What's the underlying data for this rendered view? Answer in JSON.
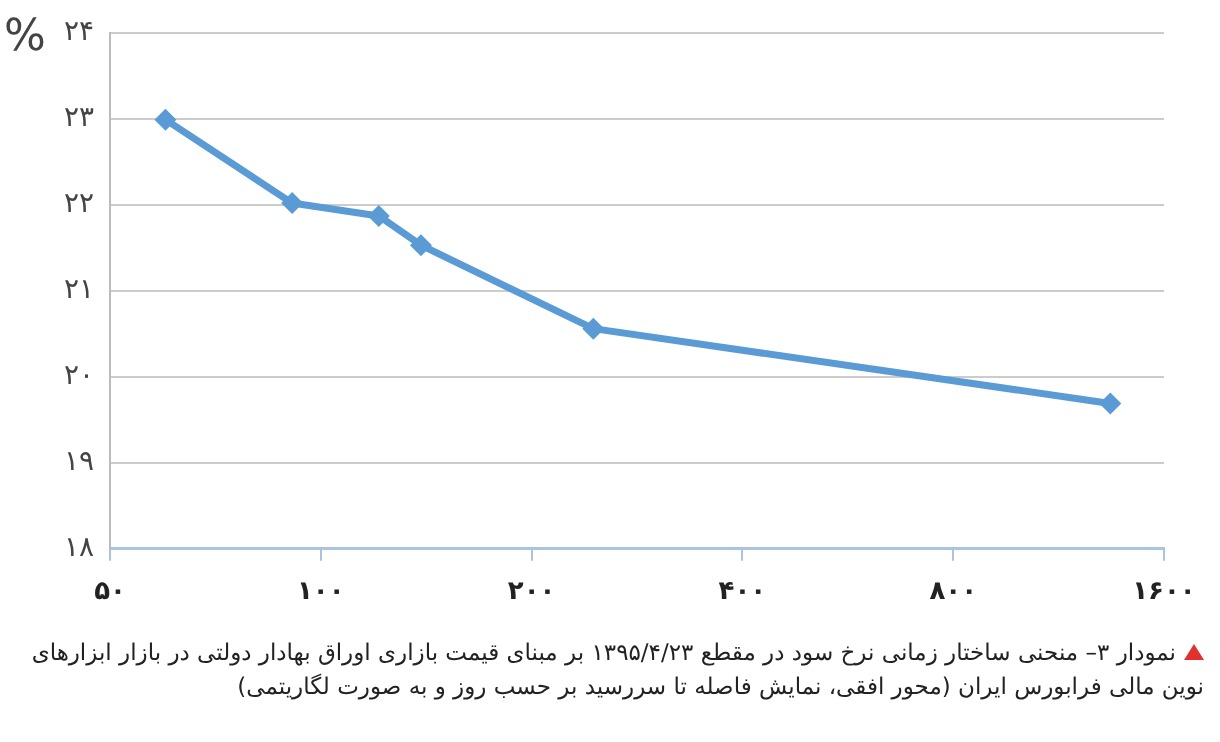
{
  "chart_data": {
    "type": "line",
    "ylabel": "%",
    "x": [
      60,
      91,
      121,
      139,
      245,
      1341
    ],
    "series": [
      {
        "color": "#5b9bd5",
        "values": [
          22.99,
          22.02,
          21.87,
          21.53,
          20.56,
          19.69
        ]
      }
    ],
    "log": "x",
    "xlim": [
      50,
      1600
    ],
    "xticks": [
      {
        "value": 50,
        "label": "۵۰"
      },
      {
        "value": 100,
        "label": "۱۰۰"
      },
      {
        "value": 200,
        "label": "۲۰۰"
      },
      {
        "value": 400,
        "label": "۴۰۰"
      },
      {
        "value": 800,
        "label": "۸۰۰"
      },
      {
        "value": 1600,
        "label": "۱۶۰۰"
      }
    ],
    "ylim": [
      18,
      24
    ],
    "yticks": [
      {
        "value": 18,
        "label": "۱۸"
      },
      {
        "value": 19,
        "label": "۱۹"
      },
      {
        "value": 20,
        "label": "۲۰"
      },
      {
        "value": 21,
        "label": "۲۱"
      },
      {
        "value": 22,
        "label": "۲۲"
      },
      {
        "value": 23,
        "label": "۲۳"
      },
      {
        "value": 24,
        "label": "۲۴"
      }
    ],
    "grid": "y",
    "legend": false,
    "marker": "diamond",
    "line_style": "solid",
    "annotations": [
      "نمودار ۳– منحنی ساختار زمانی نرخ سود در مقطع ۱۳۹۵/۴/۲۳ بر مبنای قیمت بازاری اوراق بهادار دولتی در بازار ابزارهای نوین مالی فرابورس ایران (محور افقی، نمایش فاصله تا سررسید بر حسب روز و به صورت لگاریتمی)"
    ]
  }
}
